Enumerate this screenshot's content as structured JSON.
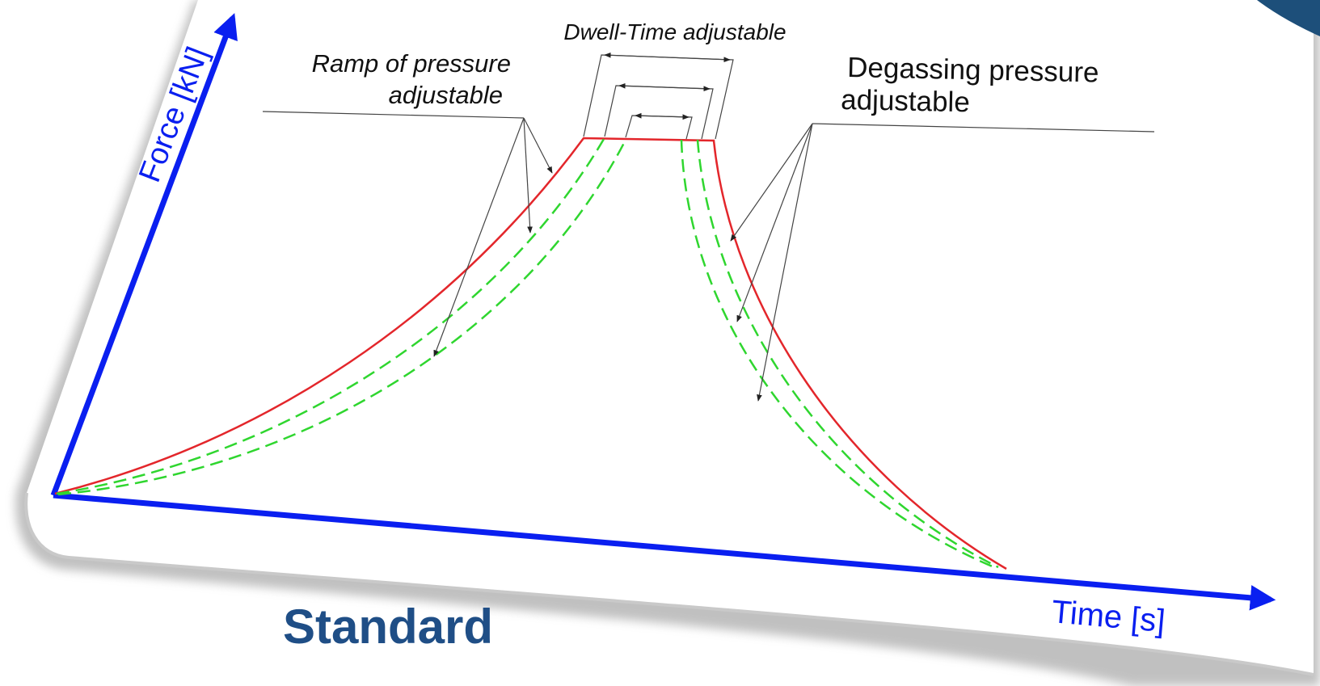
{
  "diagram": {
    "y_axis_label": "Force [kN]",
    "x_axis_label": "Time [s]",
    "caption": "Standard",
    "annotations": {
      "dwell": "Dwell-Time adjustable",
      "ramp_line1": "Ramp of pressure",
      "ramp_line2": "adjustable",
      "degas_line1": "Degassing pressure",
      "degas_line2": "adjustable"
    },
    "colors": {
      "axis": "#0a1ff0",
      "active_curve": "#e3262b",
      "alt_curve": "#2fd62f",
      "caption": "#1f4e86",
      "leader": "#444444",
      "card_shadow": "#9a9a9a",
      "corner_accent": "#1d4f7a"
    }
  }
}
